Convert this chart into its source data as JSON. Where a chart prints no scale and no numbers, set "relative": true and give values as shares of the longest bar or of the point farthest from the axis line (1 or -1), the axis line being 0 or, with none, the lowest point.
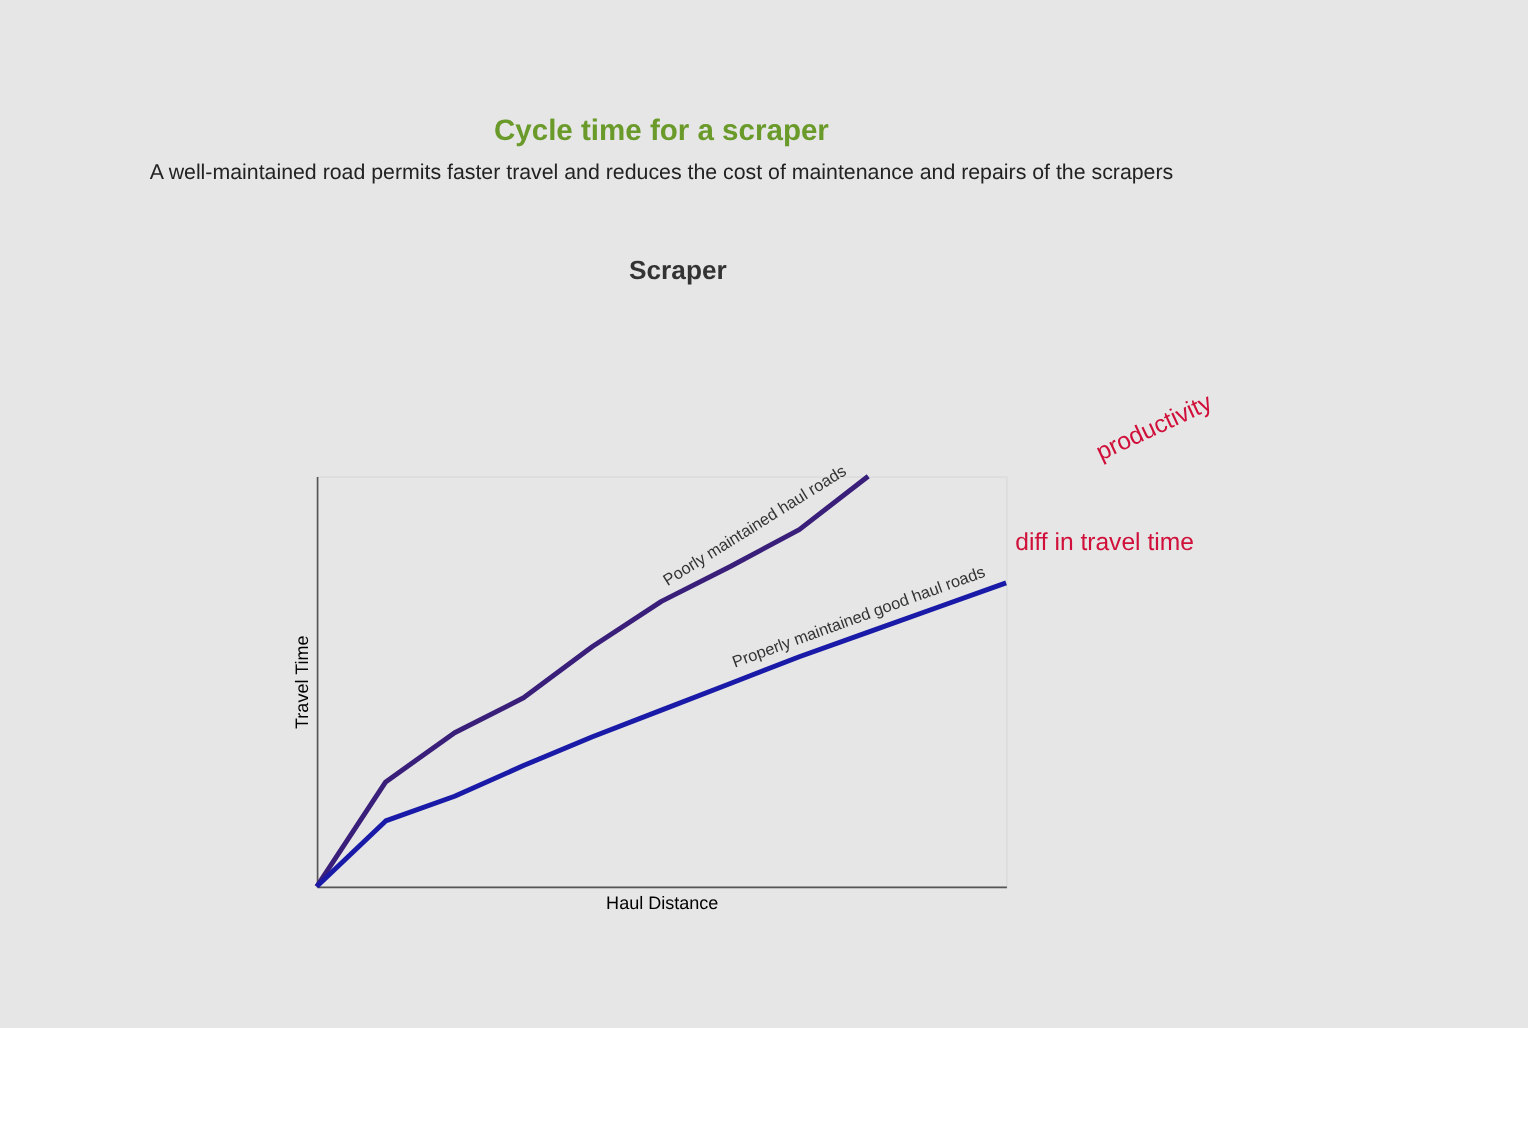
{
  "chart_data": {
    "type": "line",
    "title": "Cycle time for a scraper",
    "subtitle": "A well-maintained road permits faster travel and reduces the cost of maintenance and repairs of the scrapers",
    "xlabel": "Haul Distance",
    "ylabel": "Travel Time",
    "relative": true,
    "grid": false,
    "legend": false,
    "annotations": [
      "Scraper",
      "diff in travel time",
      "productivity"
    ],
    "categories": [
      null,
      null,
      null,
      null,
      null,
      null,
      null,
      null,
      null,
      null,
      null
    ],
    "series": [
      {
        "name": "Poorly maintained haul roads",
        "color": "#3a1f7a",
        "values": [
          0,
          0.255,
          0.375,
          0.46,
          0.585,
          0.695,
          0.78,
          0.87,
          1,
          null,
          null
        ]
      },
      {
        "name": "Properly maintained good haul roads",
        "color": "#1a1aa8",
        "values": [
          0,
          0.16,
          0.22,
          0.295,
          0.365,
          0.43,
          0.495,
          0.56,
          0.62,
          0.68,
          0.74
        ]
      }
    ]
  }
}
